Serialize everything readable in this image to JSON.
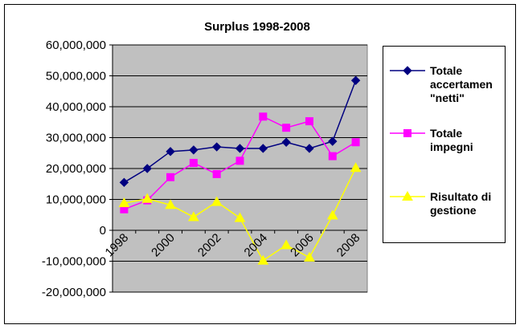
{
  "chart_data": {
    "type": "line",
    "title": "Surplus 1998-2008",
    "xlabel": "",
    "ylabel": "",
    "x": [
      1998,
      1999,
      2000,
      2001,
      2002,
      2003,
      2004,
      2005,
      2006,
      2007,
      2008
    ],
    "x_tick_labels": [
      "1998",
      "2000",
      "2002",
      "2004",
      "2006",
      "2008"
    ],
    "y_tick_labels": [
      "60,000,000",
      "50,000,000",
      "40,000,000",
      "30,000,000",
      "20,000,000",
      "10,000,000",
      "0",
      "-10,000,000",
      "-20,000,000"
    ],
    "ylim": [
      -20000000,
      60000000
    ],
    "y_step": 10000000,
    "grid": "horizontal",
    "plot_background": "#c0c0c0",
    "legend_position": "right",
    "series": [
      {
        "name_lines": [
          "Totale",
          "accertamen",
          "\"netti\""
        ],
        "color": "#000080",
        "marker": "diamond",
        "values": [
          15500000,
          20000000,
          25500000,
          26000000,
          27000000,
          26500000,
          26500000,
          28500000,
          26500000,
          28800000,
          48500000
        ]
      },
      {
        "name_lines": [
          "Totale",
          "impegni"
        ],
        "color": "#ff00ff",
        "marker": "square",
        "values": [
          6800000,
          9700000,
          17200000,
          21800000,
          18200000,
          22500000,
          36800000,
          33200000,
          35300000,
          24000000,
          28500000
        ]
      },
      {
        "name_lines": [
          "Risultato di",
          "gestione"
        ],
        "color": "#ffff00",
        "marker": "triangle",
        "values": [
          8800000,
          10200000,
          8200000,
          4300000,
          9200000,
          4000000,
          -9800000,
          -4800000,
          -8800000,
          4800000,
          20200000
        ]
      }
    ]
  }
}
